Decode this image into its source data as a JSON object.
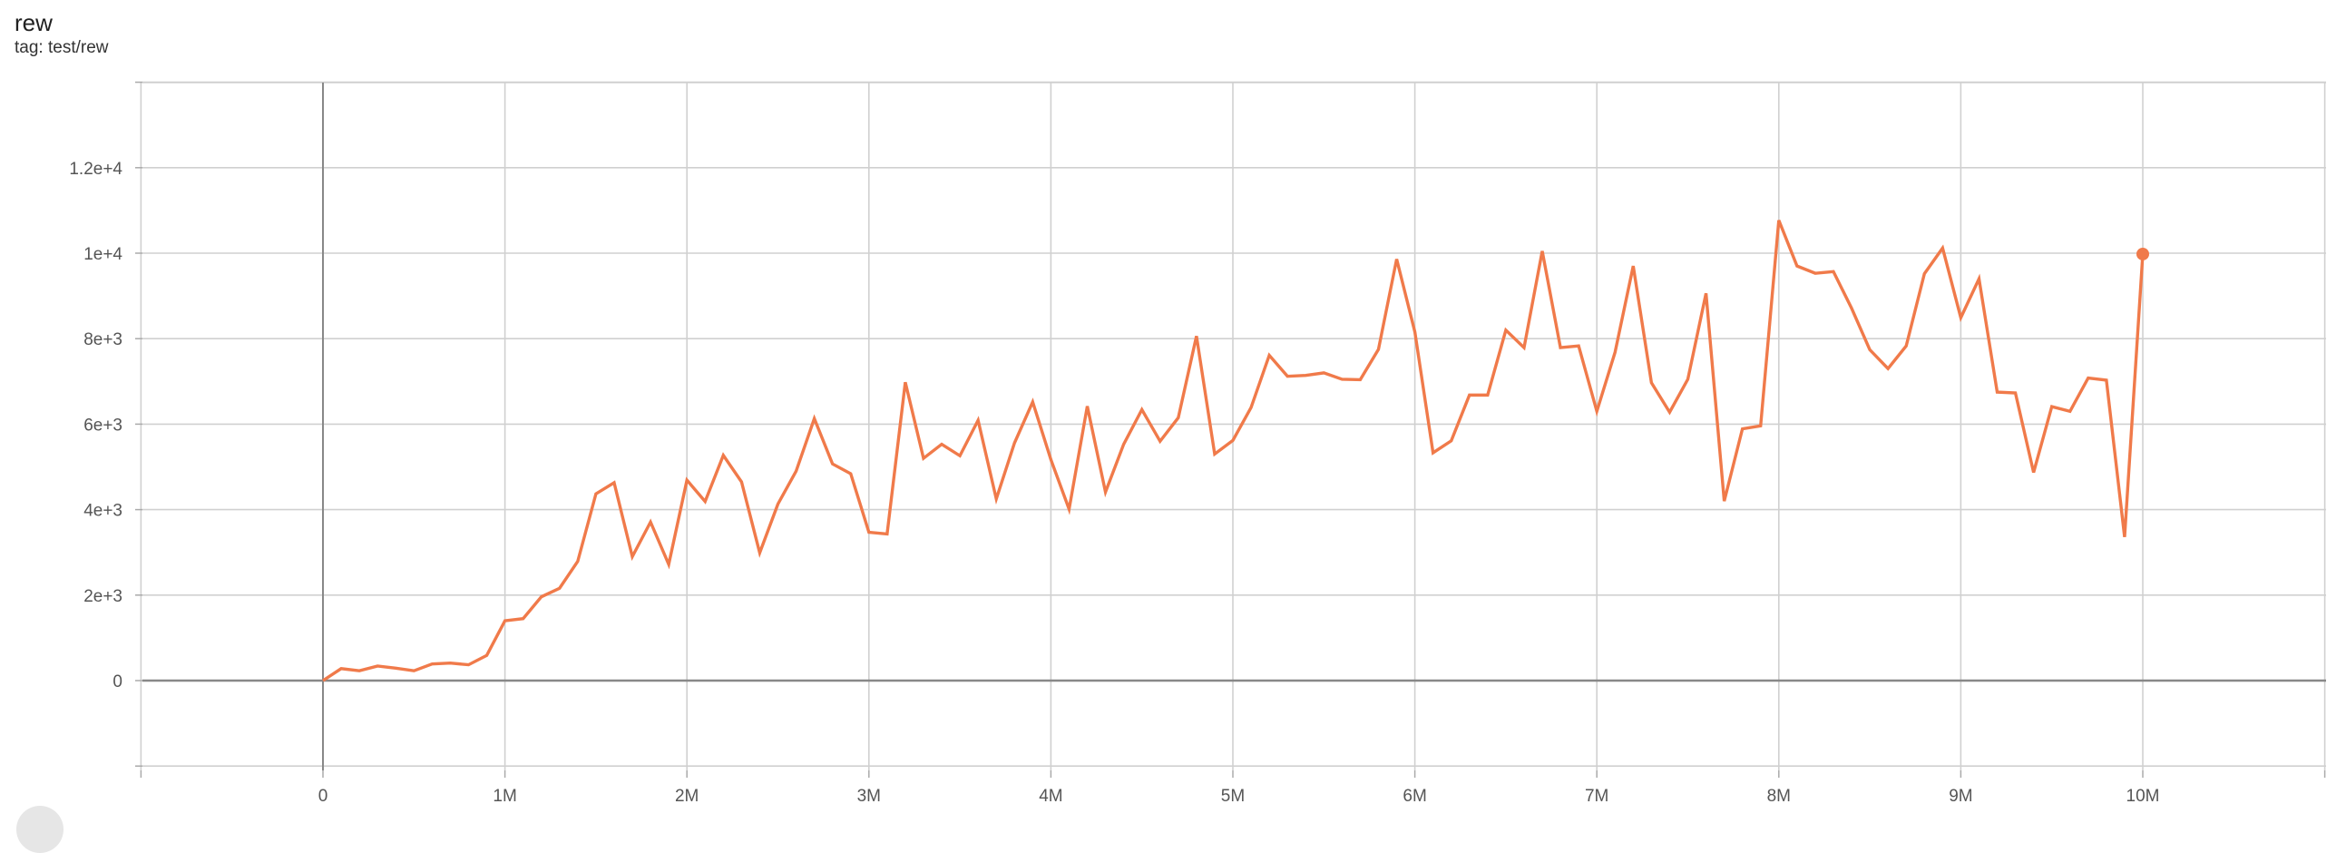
{
  "header": {
    "title": "rew",
    "subtitle": "tag: test/rew"
  },
  "chart_data": {
    "type": "line",
    "title": "rew",
    "subtitle": "tag: test/rew",
    "xlabel": "",
    "ylabel": "",
    "xlim": [
      -1000000,
      11000000
    ],
    "ylim": [
      -2100,
      14000
    ],
    "grid": true,
    "x_ticks": [
      0,
      1000000,
      2000000,
      3000000,
      4000000,
      5000000,
      6000000,
      7000000,
      8000000,
      9000000,
      10000000
    ],
    "x_tick_labels": [
      "0",
      "1M",
      "2M",
      "3M",
      "4M",
      "5M",
      "6M",
      "7M",
      "8M",
      "9M",
      "10M"
    ],
    "y_ticks": [
      0,
      2000,
      4000,
      6000,
      8000,
      10000,
      12000
    ],
    "y_tick_labels": [
      "0",
      "2e+3",
      "4e+3",
      "6e+3",
      "8e+3",
      "1e+4",
      "1.2e+4"
    ],
    "series": [
      {
        "color": "#f07a4a",
        "x_step": 100000,
        "x_start": 0,
        "values": [
          0,
          280,
          230,
          340,
          290,
          230,
          390,
          410,
          370,
          590,
          1400,
          1450,
          1960,
          2160,
          2790,
          4370,
          4630,
          2900,
          3710,
          2720,
          4690,
          4190,
          5270,
          4650,
          2990,
          4130,
          4900,
          6130,
          5070,
          4840,
          3470,
          3430,
          6980,
          5200,
          5530,
          5260,
          6090,
          4250,
          5560,
          6520,
          5170,
          4010,
          6420,
          4410,
          5530,
          6340,
          5600,
          6150,
          8060,
          5300,
          5620,
          6390,
          7610,
          7120,
          7140,
          7200,
          7050,
          7040,
          7750,
          9860,
          8160,
          5330,
          5610,
          6680,
          6680,
          8200,
          7790,
          10050,
          7790,
          7830,
          6300,
          7680,
          9700,
          6970,
          6280,
          7050,
          9060,
          4200,
          5890,
          5960,
          10770,
          9700,
          9530,
          9570,
          8710,
          7740,
          7300,
          7830,
          9520,
          10120,
          8490,
          9400,
          6750,
          6730,
          4870,
          6410,
          6300,
          7080,
          7030,
          3360,
          9980
        ]
      }
    ]
  }
}
